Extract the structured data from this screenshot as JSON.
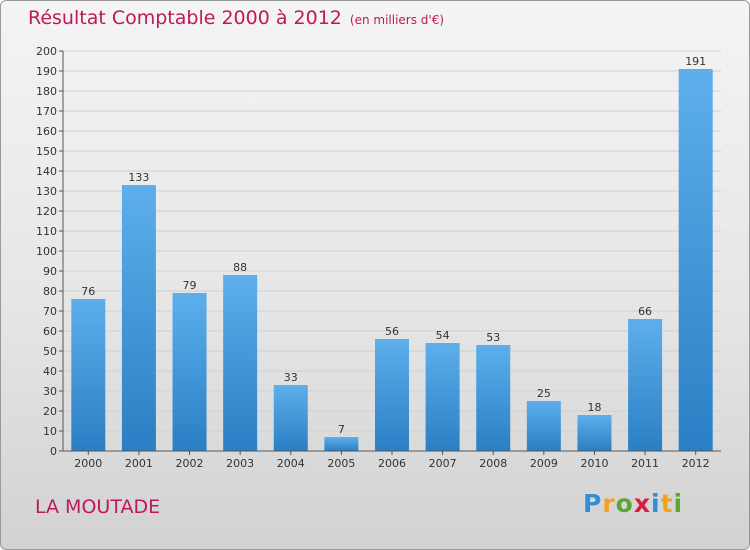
{
  "title": "Résultat Comptable 2000 à 2012",
  "subtitle": "(en milliers d'€)",
  "commune": "LA MOUTADE",
  "logo": {
    "letters": [
      "P",
      "r",
      "o",
      "x",
      "i",
      "t",
      "i"
    ],
    "colors": [
      "#2e8fd6",
      "#f0a31c",
      "#5aa832",
      "#d61f3f",
      "#2e8fd6",
      "#f0a31c",
      "#5aa832"
    ]
  },
  "colors": {
    "title": "#c0185c",
    "bar_light": "#5dafec",
    "bar_dark": "#2a7fc4",
    "grid": "#d0d0d0"
  },
  "chart_data": {
    "type": "bar",
    "categories": [
      "2000",
      "2001",
      "2002",
      "2003",
      "2004",
      "2005",
      "2006",
      "2007",
      "2008",
      "2009",
      "2010",
      "2011",
      "2012"
    ],
    "values": [
      76,
      133,
      79,
      88,
      33,
      7,
      56,
      54,
      53,
      25,
      18,
      66,
      191
    ],
    "ylim": [
      0,
      200
    ],
    "ytick_step": 10,
    "xlabel": "",
    "ylabel": "",
    "grid": "horizontal",
    "data_labels": true
  }
}
